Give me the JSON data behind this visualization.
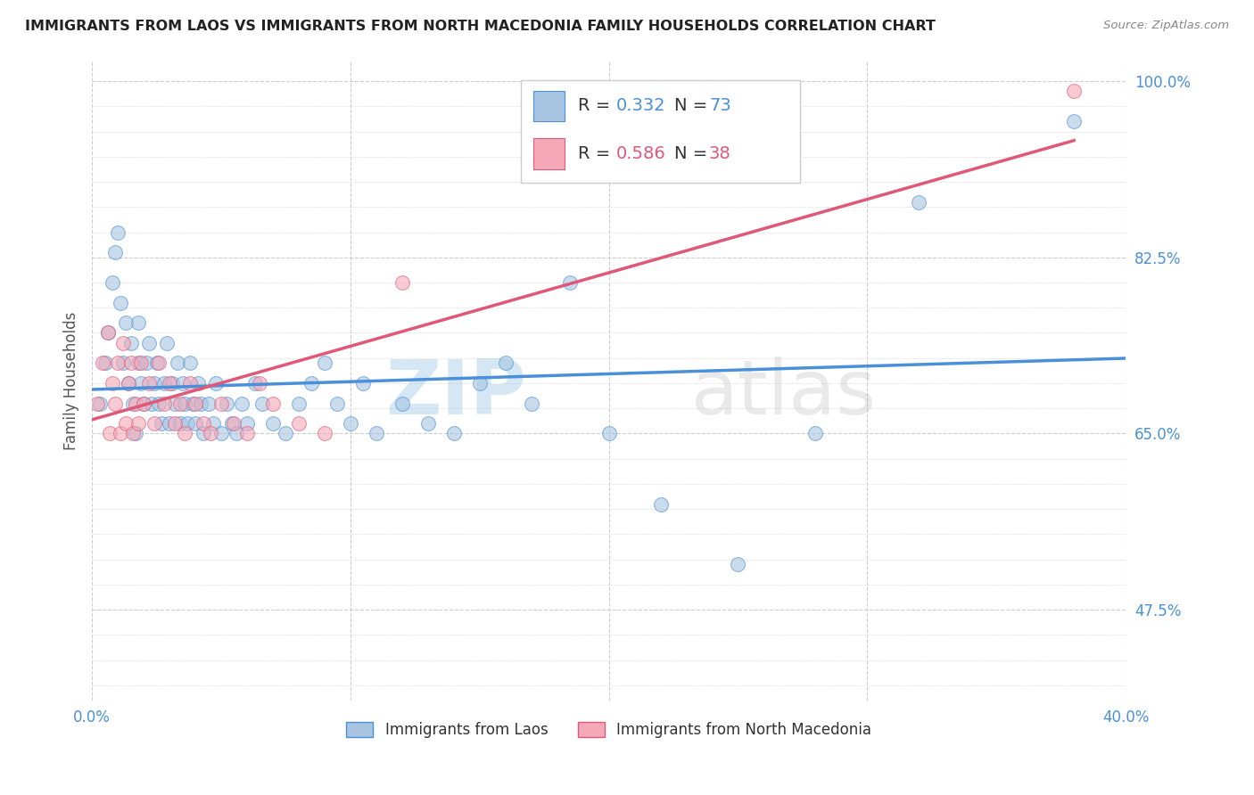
{
  "title": "IMMIGRANTS FROM LAOS VS IMMIGRANTS FROM NORTH MACEDONIA FAMILY HOUSEHOLDS CORRELATION CHART",
  "source": "Source: ZipAtlas.com",
  "ylabel": "Family Households",
  "legend_label1": "Immigrants from Laos",
  "legend_label2": "Immigrants from North Macedonia",
  "r1": 0.332,
  "n1": 73,
  "r2": 0.586,
  "n2": 38,
  "color1": "#a8c4e0",
  "color2": "#f4a8b8",
  "line_color1": "#4a90d9",
  "line_color2": "#e05878",
  "xmin": 0.0,
  "xmax": 0.4,
  "ymin": 0.385,
  "ymax": 1.02,
  "watermark_zip": "ZIP",
  "watermark_atlas": "atlas",
  "scatter_laos_x": [
    0.003,
    0.005,
    0.006,
    0.008,
    0.009,
    0.01,
    0.011,
    0.012,
    0.013,
    0.014,
    0.015,
    0.016,
    0.017,
    0.018,
    0.018,
    0.019,
    0.02,
    0.021,
    0.022,
    0.023,
    0.024,
    0.025,
    0.026,
    0.027,
    0.028,
    0.029,
    0.03,
    0.031,
    0.032,
    0.033,
    0.034,
    0.035,
    0.036,
    0.037,
    0.038,
    0.039,
    0.04,
    0.041,
    0.042,
    0.043,
    0.045,
    0.047,
    0.048,
    0.05,
    0.052,
    0.054,
    0.056,
    0.058,
    0.06,
    0.063,
    0.066,
    0.07,
    0.075,
    0.08,
    0.085,
    0.09,
    0.095,
    0.1,
    0.105,
    0.11,
    0.12,
    0.13,
    0.14,
    0.15,
    0.16,
    0.17,
    0.185,
    0.2,
    0.22,
    0.25,
    0.28,
    0.32,
    0.38
  ],
  "scatter_laos_y": [
    0.68,
    0.72,
    0.75,
    0.8,
    0.83,
    0.85,
    0.78,
    0.72,
    0.76,
    0.7,
    0.74,
    0.68,
    0.65,
    0.72,
    0.76,
    0.7,
    0.68,
    0.72,
    0.74,
    0.68,
    0.7,
    0.72,
    0.68,
    0.66,
    0.7,
    0.74,
    0.66,
    0.7,
    0.68,
    0.72,
    0.66,
    0.7,
    0.68,
    0.66,
    0.72,
    0.68,
    0.66,
    0.7,
    0.68,
    0.65,
    0.68,
    0.66,
    0.7,
    0.65,
    0.68,
    0.66,
    0.65,
    0.68,
    0.66,
    0.7,
    0.68,
    0.66,
    0.65,
    0.68,
    0.7,
    0.72,
    0.68,
    0.66,
    0.7,
    0.65,
    0.68,
    0.66,
    0.65,
    0.7,
    0.72,
    0.68,
    0.8,
    0.65,
    0.58,
    0.52,
    0.65,
    0.88,
    0.96
  ],
  "scatter_mac_x": [
    0.002,
    0.004,
    0.006,
    0.007,
    0.008,
    0.009,
    0.01,
    0.011,
    0.012,
    0.013,
    0.014,
    0.015,
    0.016,
    0.017,
    0.018,
    0.019,
    0.02,
    0.022,
    0.024,
    0.026,
    0.028,
    0.03,
    0.032,
    0.034,
    0.036,
    0.038,
    0.04,
    0.043,
    0.046,
    0.05,
    0.055,
    0.06,
    0.065,
    0.07,
    0.08,
    0.09,
    0.12,
    0.38
  ],
  "scatter_mac_y": [
    0.68,
    0.72,
    0.75,
    0.65,
    0.7,
    0.68,
    0.72,
    0.65,
    0.74,
    0.66,
    0.7,
    0.72,
    0.65,
    0.68,
    0.66,
    0.72,
    0.68,
    0.7,
    0.66,
    0.72,
    0.68,
    0.7,
    0.66,
    0.68,
    0.65,
    0.7,
    0.68,
    0.66,
    0.65,
    0.68,
    0.66,
    0.65,
    0.7,
    0.68,
    0.66,
    0.65,
    0.8,
    0.99
  ]
}
